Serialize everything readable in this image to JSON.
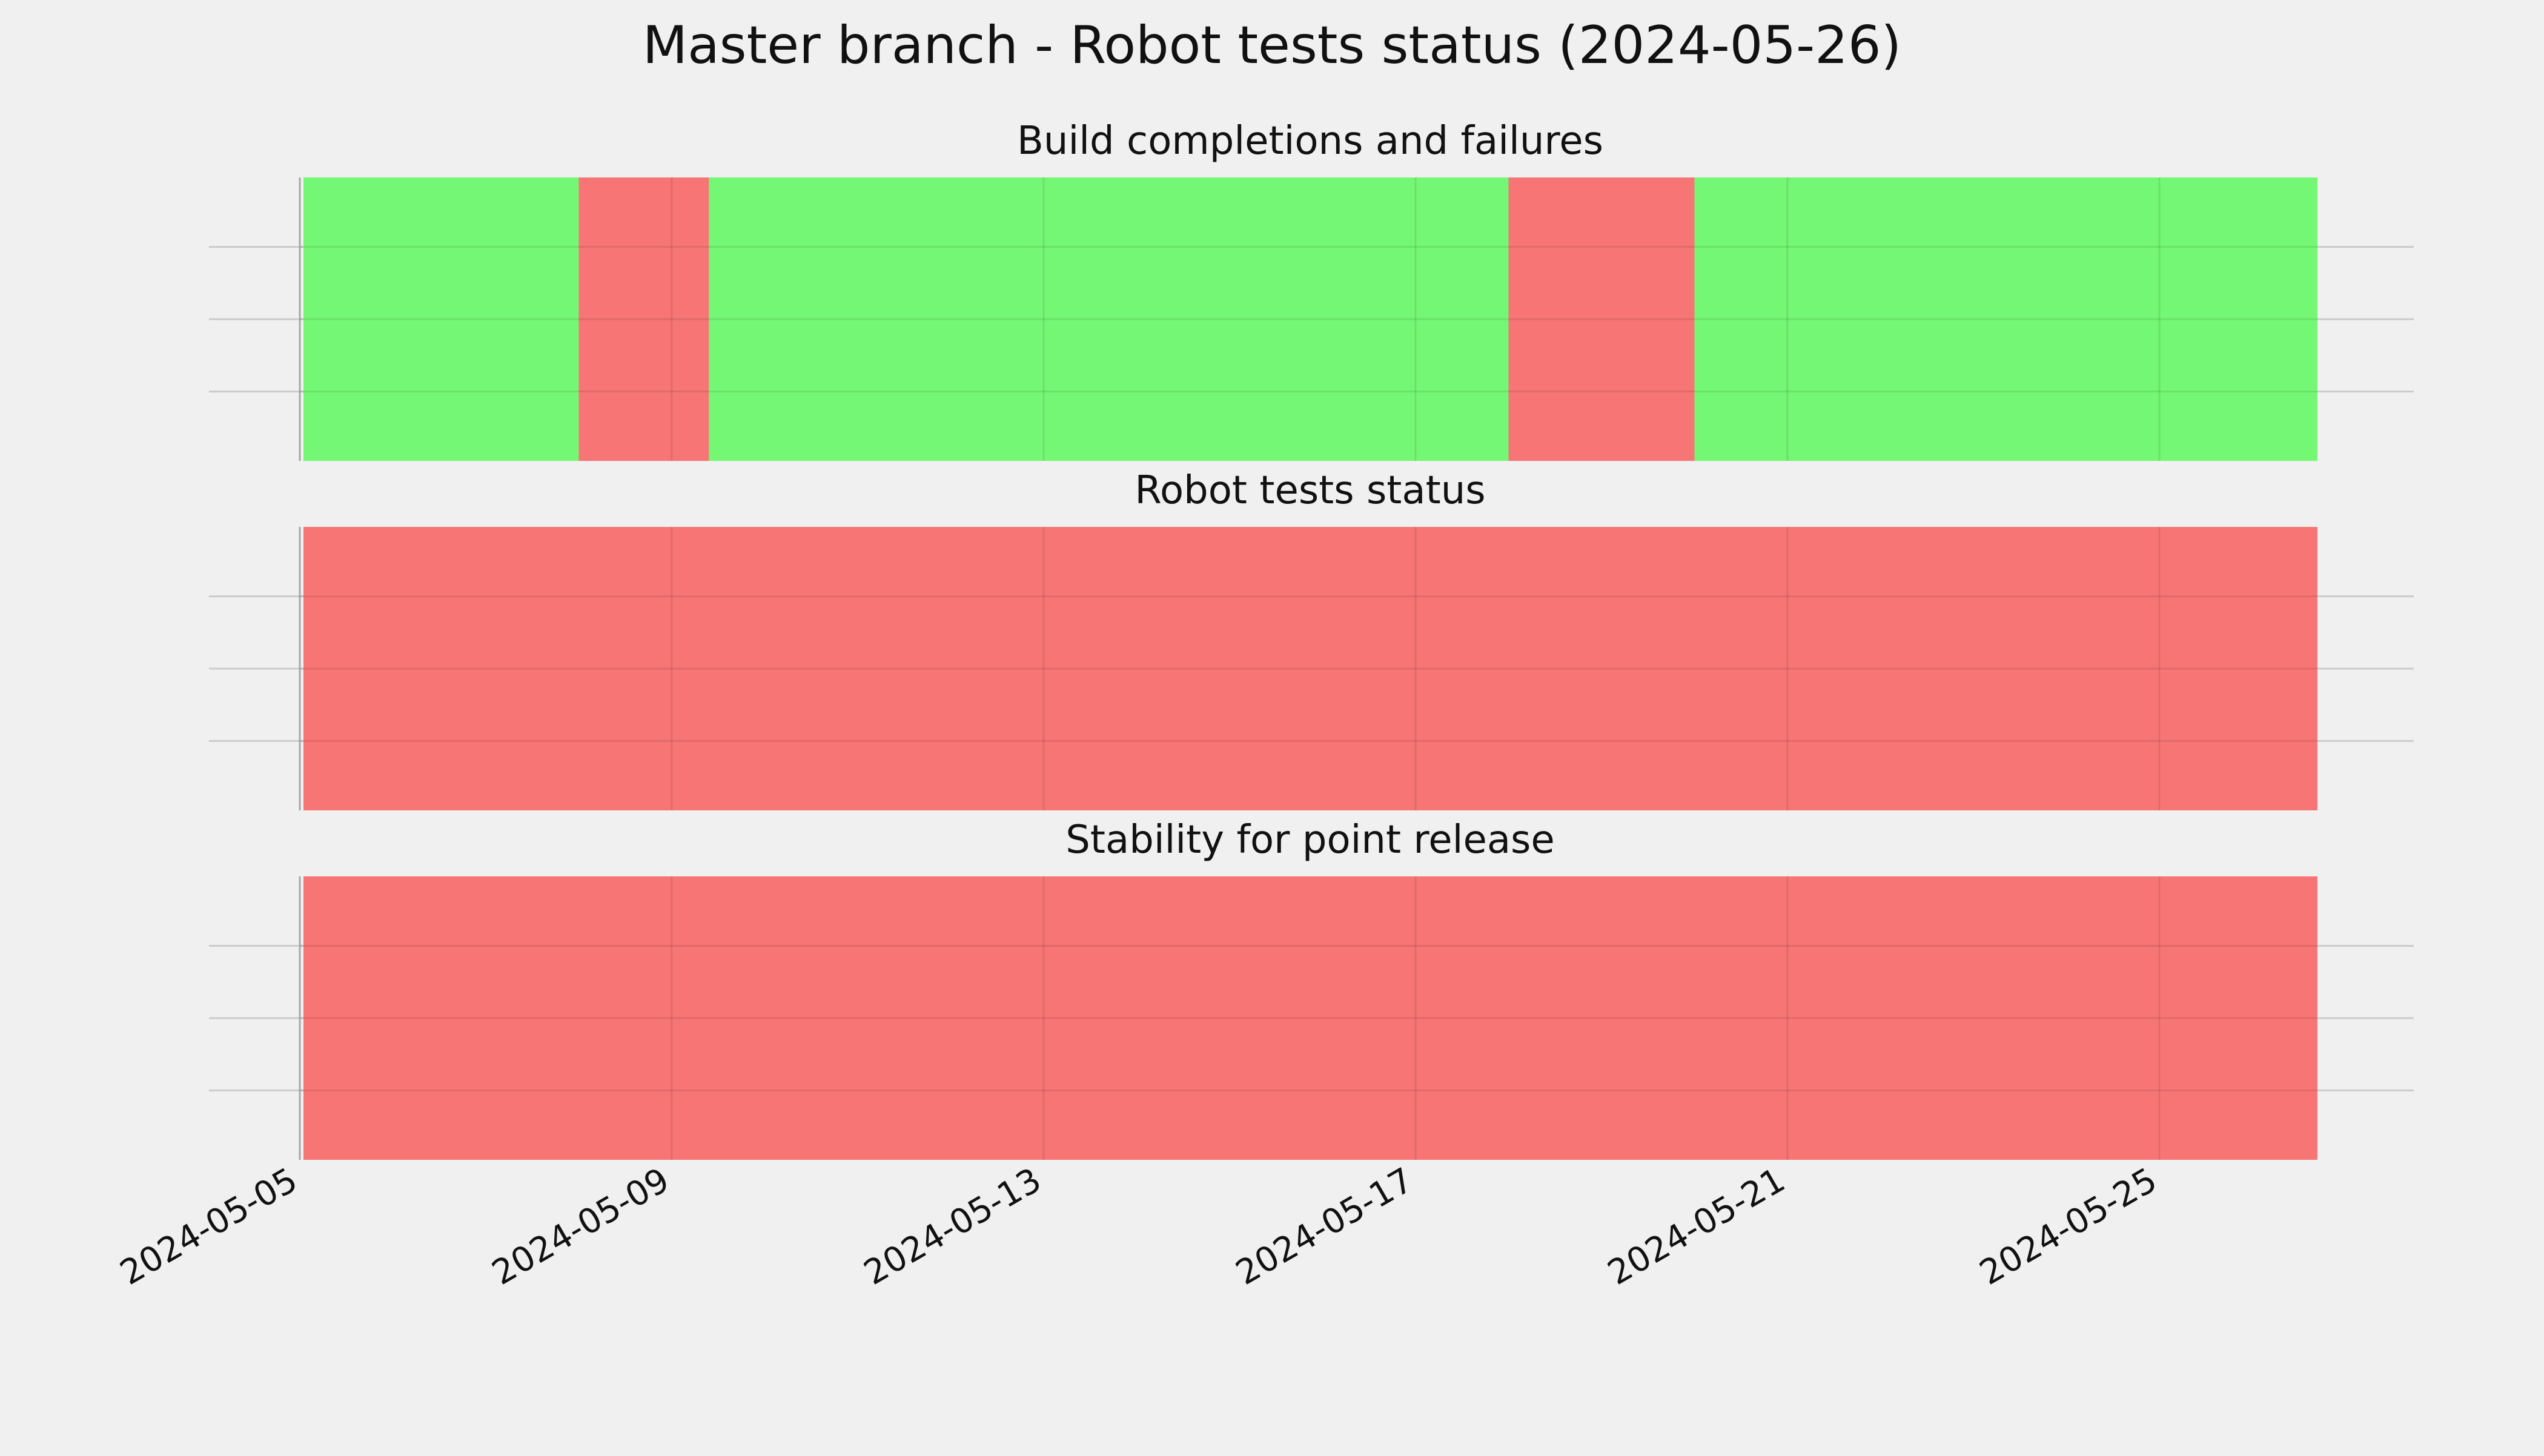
{
  "chart_data": {
    "type": "timeline",
    "title": "Master branch - Robot tests status (2024-05-26)",
    "x_axis": {
      "type": "date",
      "range": [
        "2024-05-05",
        "2024-05-27"
      ],
      "tick_labels": [
        "2024-05-05",
        "2024-05-09",
        "2024-05-13",
        "2024-05-17",
        "2024-05-21",
        "2024-05-25"
      ]
    },
    "colors": {
      "pass": "#75f776",
      "fail": "#f77575",
      "background": "#f0f0f0"
    },
    "grid": true,
    "panels": [
      {
        "subtitle": "Build completions and failures",
        "segments": [
          {
            "start": "2024-05-05",
            "end": "2024-05-08",
            "status": "pass"
          },
          {
            "start": "2024-05-08",
            "end": "2024-05-09.4",
            "status": "fail"
          },
          {
            "start": "2024-05-09.4",
            "end": "2024-05-18",
            "status": "pass"
          },
          {
            "start": "2024-05-18",
            "end": "2024-05-20",
            "status": "fail"
          },
          {
            "start": "2024-05-20",
            "end": "2024-05-26.7",
            "status": "pass"
          }
        ]
      },
      {
        "subtitle": "Robot tests status",
        "segments": [
          {
            "start": "2024-05-05",
            "end": "2024-05-26.7",
            "status": "fail"
          }
        ]
      },
      {
        "subtitle": "Stability for point release",
        "segments": [
          {
            "start": "2024-05-05",
            "end": "2024-05-26.7",
            "status": "fail"
          }
        ]
      }
    ]
  }
}
